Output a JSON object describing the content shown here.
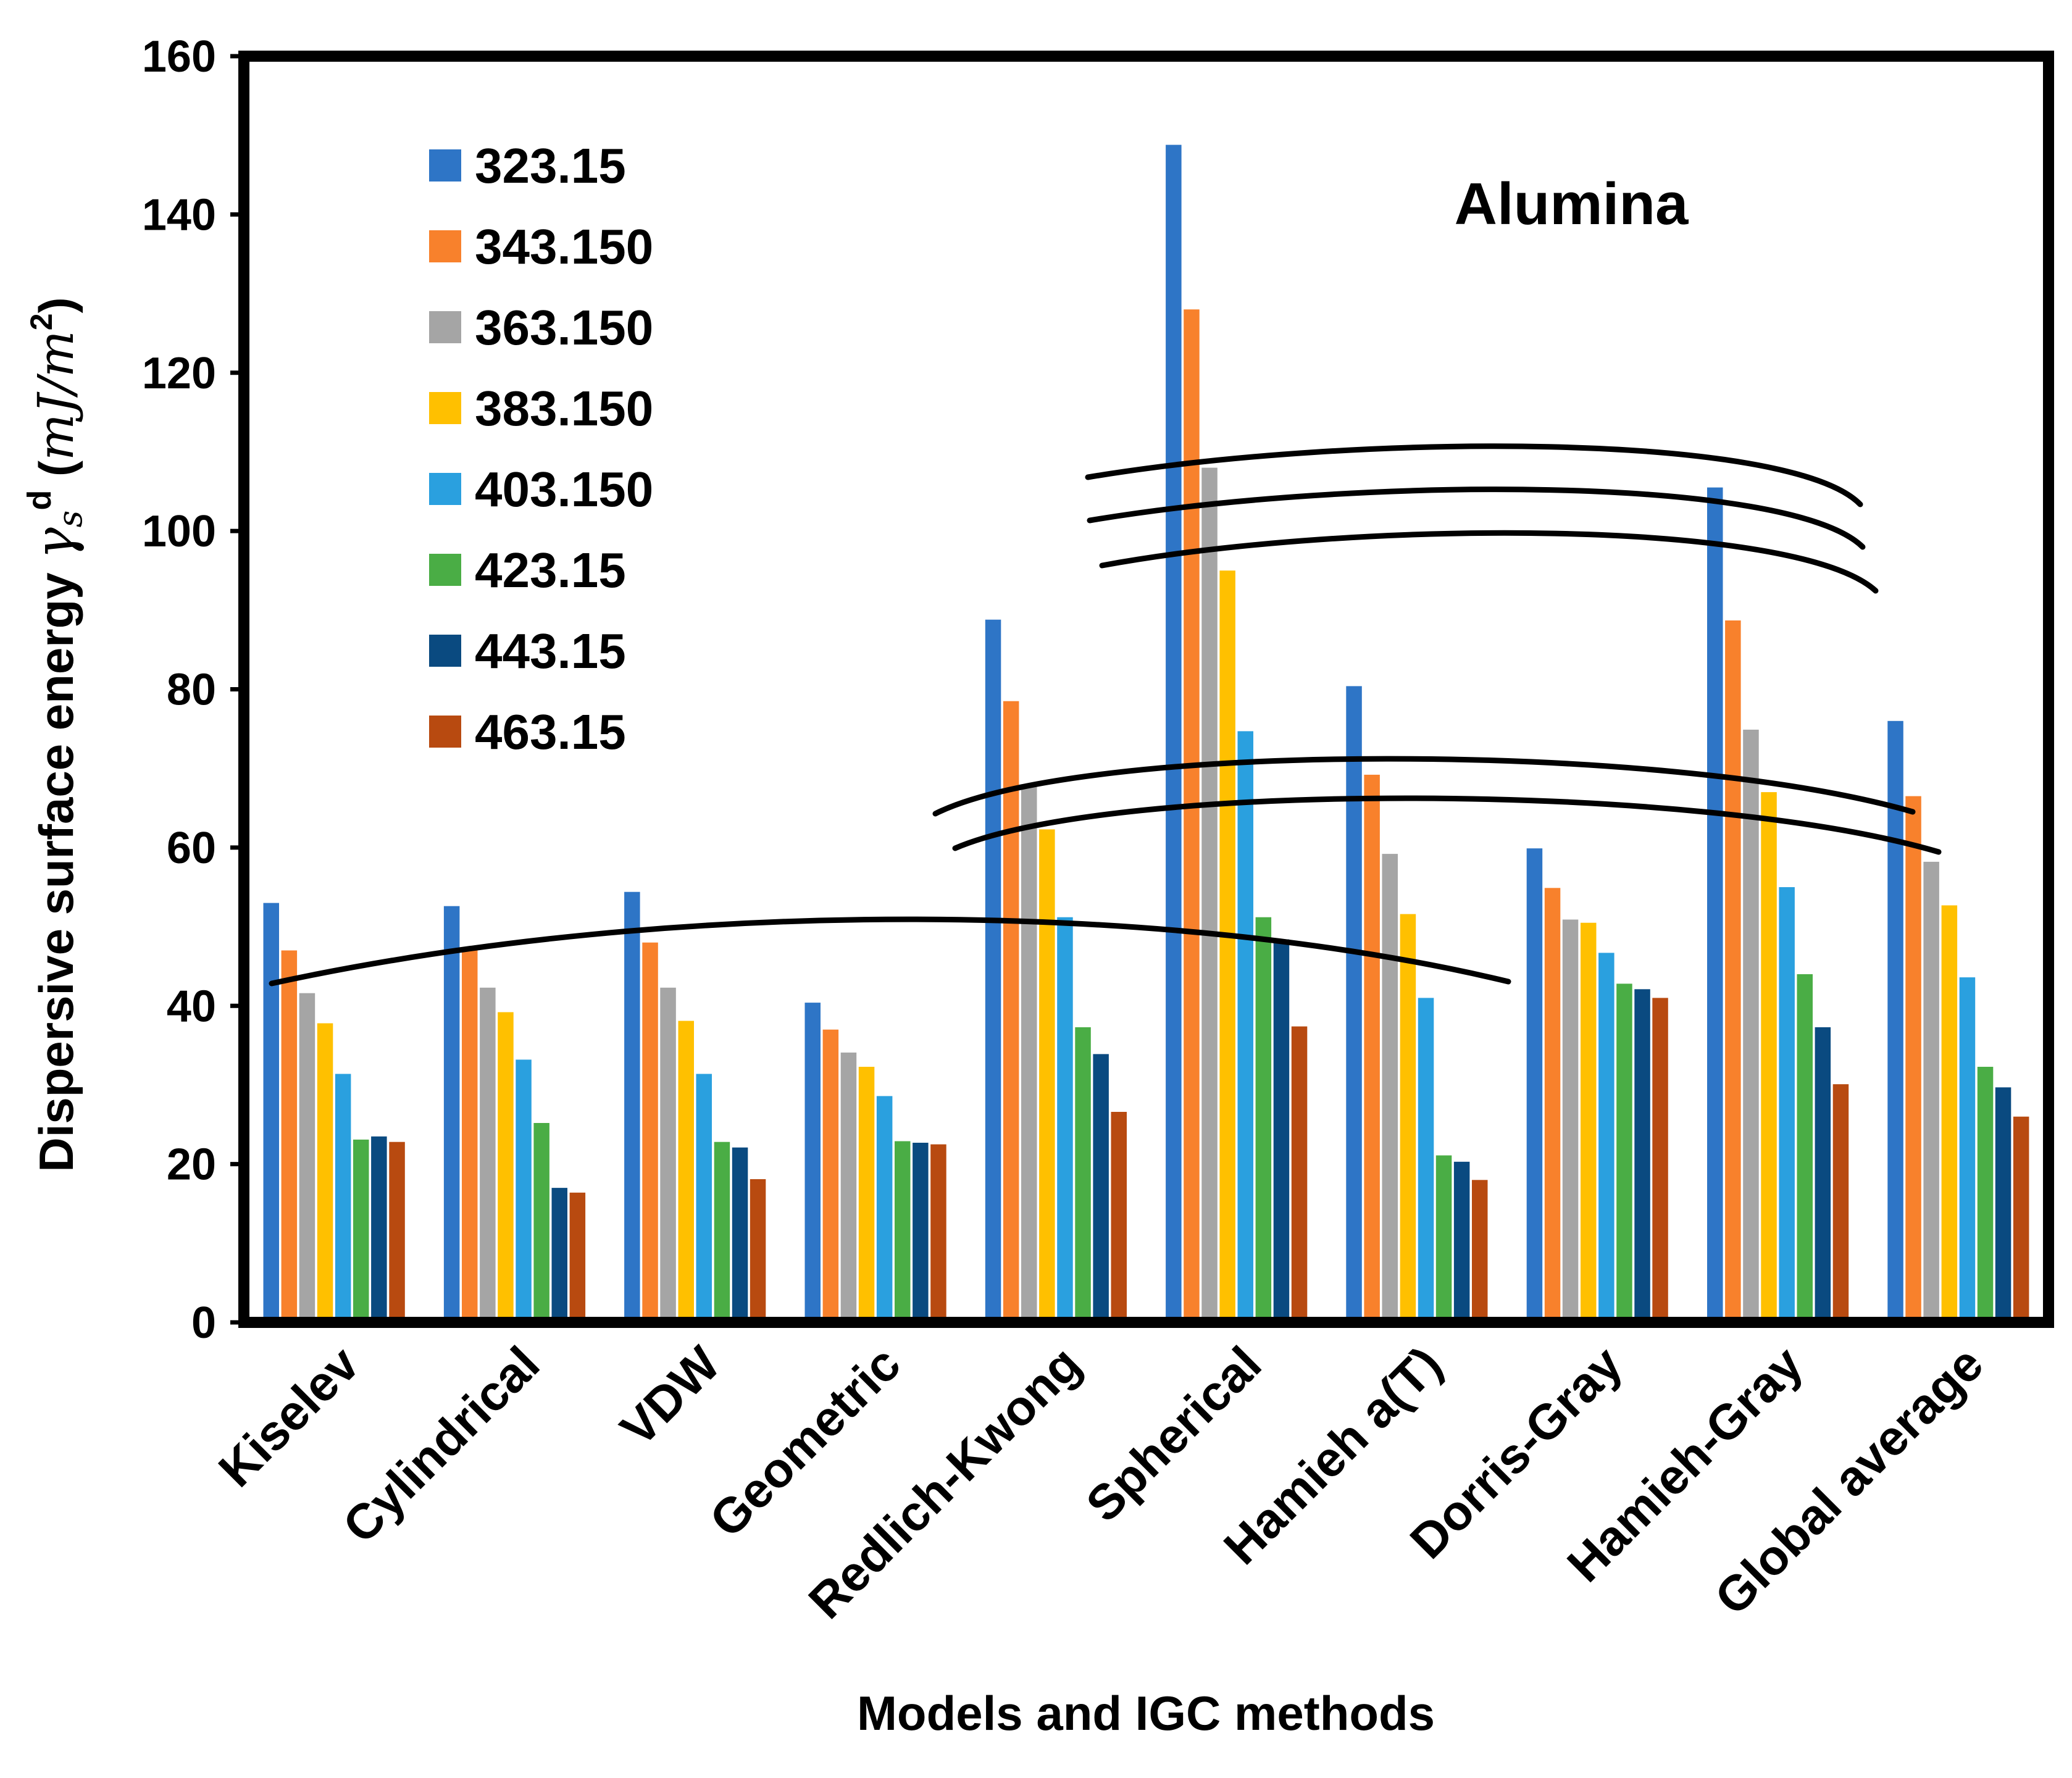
{
  "chart_data": {
    "type": "bar",
    "title": "Alumina",
    "xlabel": "Models and IGC methods",
    "ylabel": {
      "prefix": "Dispersive surface energy ",
      "symbol": "γ",
      "subscript": "s",
      "superscript": "d",
      "units_open": " (",
      "units": "mJ/m",
      "units_power": "2",
      "units_close": ")"
    },
    "ylim": [
      0,
      160
    ],
    "yticks": [
      "0",
      "20",
      "40",
      "60",
      "80",
      "100",
      "120",
      "140",
      "160"
    ],
    "grid": false,
    "legend_position": "top-left",
    "categories": [
      "Kiselev",
      "Cylindrical",
      "VDW",
      "Geometric",
      "Redlich-Kwong",
      "Spherical",
      "Hamieh a(T)",
      "Dorris-Gray",
      "Hamieh-Gray",
      "Global average"
    ],
    "series": [
      {
        "name": "323.15",
        "color": "#2E75C6",
        "values": [
          53,
          52.6,
          54.4,
          40.4,
          88.8,
          148.8,
          80.4,
          59.9,
          105.5,
          76
        ]
      },
      {
        "name": "343.150",
        "color": "#F8812C",
        "values": [
          47,
          47,
          48,
          37,
          78.5,
          128,
          69.2,
          54.9,
          88.7,
          66.5
        ]
      },
      {
        "name": "363.150",
        "color": "#A5A5A5",
        "values": [
          41.6,
          42.3,
          42.3,
          34.1,
          68,
          108,
          59.2,
          50.9,
          74.9,
          58.2
        ]
      },
      {
        "name": "383.150",
        "color": "#FFC000",
        "values": [
          37.8,
          39.2,
          38.1,
          32.3,
          62.3,
          95,
          51.6,
          50.5,
          67,
          52.7
        ]
      },
      {
        "name": "403.150",
        "color": "#2AA0DF",
        "values": [
          31.4,
          33.2,
          31.4,
          28.6,
          51.2,
          74.7,
          41,
          46.7,
          55,
          43.6
        ]
      },
      {
        "name": "423.15",
        "color": "#4AAD45",
        "values": [
          23.1,
          25.2,
          22.8,
          22.9,
          37.3,
          51.2,
          21.1,
          42.8,
          44,
          32.3
        ]
      },
      {
        "name": "443.15",
        "color": "#0A4A80",
        "values": [
          23.5,
          17,
          22.1,
          22.7,
          33.9,
          48.4,
          20.3,
          42.1,
          37.3,
          29.7
        ]
      },
      {
        "name": "463.15",
        "color": "#B84A10",
        "values": [
          22.8,
          16.4,
          18.1,
          22.5,
          26.6,
          37.4,
          18,
          41,
          30.1,
          26
        ]
      }
    ]
  }
}
